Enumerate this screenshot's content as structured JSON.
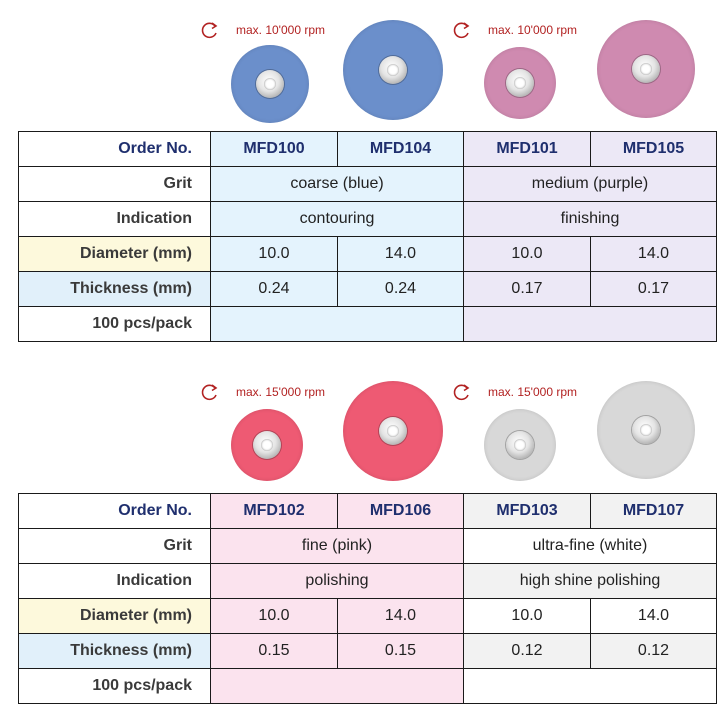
{
  "colors": {
    "blue_disc": "#6b8fcb",
    "purple_disc": "#cf8ab0",
    "pink_disc": "#ee5a73",
    "white_disc": "#d8d8d8",
    "rpm_text": "#b22222",
    "order_text": "#1f2f6e"
  },
  "icons": [
    "rotation-arrow-icon"
  ],
  "top": {
    "rpm_left": "max. 10'000 rpm",
    "rpm_right": "max. 10'000 rpm",
    "table": {
      "labels": {
        "order": "Order No.",
        "grit": "Grit",
        "indication": "Indication",
        "diameter": "Diameter (mm)",
        "thickness": "Thickness (mm)",
        "pack": "100 pcs/pack"
      },
      "codes": [
        "MFD100",
        "MFD104",
        "MFD101",
        "MFD105"
      ],
      "grit": [
        "coarse (blue)",
        "medium (purple)"
      ],
      "indication": [
        "contouring",
        "finishing"
      ],
      "diameter": [
        "10.0",
        "14.0",
        "10.0",
        "14.0"
      ],
      "thickness": [
        "0.24",
        "0.24",
        "0.17",
        "0.17"
      ]
    }
  },
  "bottom": {
    "rpm_left": "max. 15'000 rpm",
    "rpm_right": "max. 15'000 rpm",
    "table": {
      "labels": {
        "order": "Order No.",
        "grit": "Grit",
        "indication": "Indication",
        "diameter": "Diameter (mm)",
        "thickness": "Thickness (mm)",
        "pack": "100 pcs/pack"
      },
      "codes": [
        "MFD102",
        "MFD106",
        "MFD103",
        "MFD107"
      ],
      "grit": [
        "fine (pink)",
        "ultra-fine (white)"
      ],
      "indication": [
        "polishing",
        "high shine polishing"
      ],
      "diameter": [
        "10.0",
        "14.0",
        "10.0",
        "14.0"
      ],
      "thickness": [
        "0.15",
        "0.15",
        "0.12",
        "0.12"
      ]
    }
  }
}
